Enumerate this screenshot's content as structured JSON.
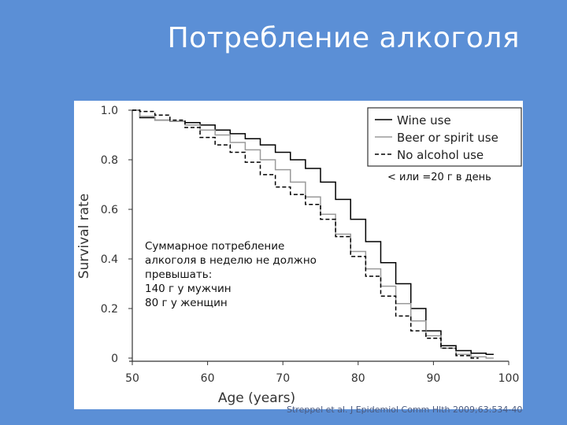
{
  "slide": {
    "title": "Потребление алкоголя",
    "citation": "Streppel et al. J Epidemiol Comm Hlth 2009;63:534-40"
  },
  "annotations": {
    "threshold": "< или =20 г в день",
    "weekly_limit": "Суммарное потребление\nалкоголя в неделю не должно\nпревышать:\n140 г у мужчин\n80 г у женщин"
  },
  "chart_data": {
    "type": "line",
    "xlabel": "Age (years)",
    "ylabel": "Survival rate",
    "xlim": [
      50,
      100
    ],
    "ylim": [
      0,
      1.0
    ],
    "x_ticks": [
      "50",
      "60",
      "70",
      "80",
      "90",
      "100"
    ],
    "y_ticks": [
      "0",
      "0.2",
      "0.4",
      "0.6",
      "0.8",
      "1.0"
    ],
    "grid": false,
    "legend_position": "top-right",
    "series": [
      {
        "name": "Wine use",
        "color": "#000000",
        "style": "solid",
        "x": [
          50,
          52,
          54,
          56,
          58,
          60,
          62,
          64,
          66,
          68,
          70,
          72,
          74,
          76,
          78,
          80,
          82,
          84,
          86,
          88,
          90,
          92,
          94,
          96,
          98
        ],
        "y": [
          1.0,
          0.97,
          0.96,
          0.955,
          0.95,
          0.94,
          0.92,
          0.905,
          0.885,
          0.86,
          0.83,
          0.8,
          0.765,
          0.71,
          0.64,
          0.56,
          0.47,
          0.385,
          0.3,
          0.2,
          0.11,
          0.05,
          0.03,
          0.02,
          0.015
        ]
      },
      {
        "name": "Beer or spirit use",
        "color": "#9a9a9a",
        "style": "solid",
        "x": [
          50,
          52,
          54,
          56,
          58,
          60,
          62,
          64,
          66,
          68,
          70,
          72,
          74,
          76,
          78,
          80,
          82,
          84,
          86,
          88,
          90,
          92,
          94,
          96,
          98
        ],
        "y": [
          1.0,
          0.975,
          0.96,
          0.955,
          0.94,
          0.92,
          0.9,
          0.87,
          0.84,
          0.8,
          0.76,
          0.71,
          0.65,
          0.58,
          0.5,
          0.43,
          0.36,
          0.29,
          0.22,
          0.15,
          0.09,
          0.04,
          0.015,
          0.005,
          0.0
        ]
      },
      {
        "name": "No alcohol use",
        "color": "#000000",
        "style": "dashed",
        "x": [
          50,
          52,
          54,
          56,
          58,
          60,
          62,
          64,
          66,
          68,
          70,
          72,
          74,
          76,
          78,
          80,
          82,
          84,
          86,
          88,
          90,
          92,
          94,
          96
        ],
        "y": [
          1.0,
          0.995,
          0.98,
          0.96,
          0.93,
          0.89,
          0.86,
          0.83,
          0.79,
          0.74,
          0.69,
          0.66,
          0.62,
          0.56,
          0.49,
          0.41,
          0.33,
          0.25,
          0.17,
          0.11,
          0.08,
          0.04,
          0.01,
          0.0
        ]
      }
    ]
  }
}
